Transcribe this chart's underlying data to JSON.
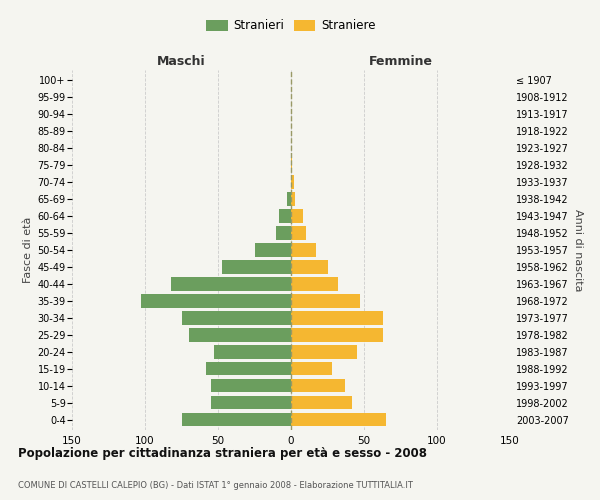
{
  "age_groups": [
    "0-4",
    "5-9",
    "10-14",
    "15-19",
    "20-24",
    "25-29",
    "30-34",
    "35-39",
    "40-44",
    "45-49",
    "50-54",
    "55-59",
    "60-64",
    "65-69",
    "70-74",
    "75-79",
    "80-84",
    "85-89",
    "90-94",
    "95-99",
    "100+"
  ],
  "birth_years": [
    "2003-2007",
    "1998-2002",
    "1993-1997",
    "1988-1992",
    "1983-1987",
    "1978-1982",
    "1973-1977",
    "1968-1972",
    "1963-1967",
    "1958-1962",
    "1953-1957",
    "1948-1952",
    "1943-1947",
    "1938-1942",
    "1933-1937",
    "1928-1932",
    "1923-1927",
    "1918-1922",
    "1913-1917",
    "1908-1912",
    "≤ 1907"
  ],
  "maschi": [
    75,
    55,
    55,
    58,
    53,
    70,
    75,
    103,
    82,
    47,
    25,
    10,
    8,
    3,
    0,
    0,
    0,
    0,
    0,
    0,
    0
  ],
  "femmine": [
    65,
    42,
    37,
    28,
    45,
    63,
    63,
    47,
    32,
    25,
    17,
    10,
    8,
    3,
    2,
    1,
    0,
    0,
    0,
    0,
    0
  ],
  "male_color": "#6b9e5e",
  "female_color": "#f5b731",
  "background_color": "#f5f5f0",
  "grid_color": "#cccccc",
  "title": "Popolazione per cittadinanza straniera per età e sesso - 2008",
  "subtitle": "COMUNE DI CASTELLI CALEPIO (BG) - Dati ISTAT 1° gennaio 2008 - Elaborazione TUTTITALIA.IT",
  "xlabel_left": "Maschi",
  "xlabel_right": "Femmine",
  "ylabel_left": "Fasce di età",
  "ylabel_right": "Anni di nascita",
  "xlim": 150,
  "legend_stranieri": "Stranieri",
  "legend_straniere": "Straniere"
}
